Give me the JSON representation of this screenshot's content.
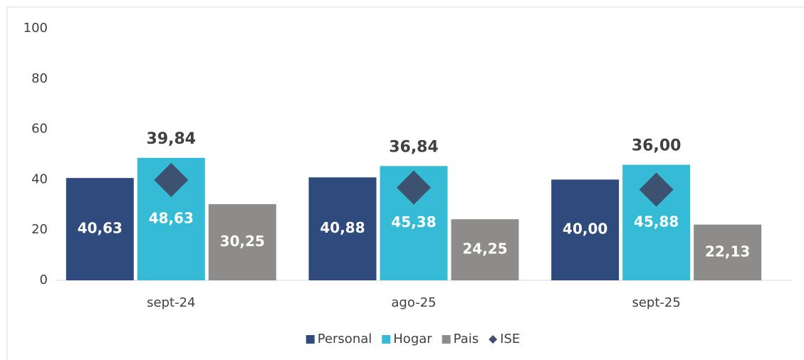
{
  "chart_data": {
    "type": "bar",
    "categories": [
      "sept-24",
      "ago-25",
      "sept-25"
    ],
    "series": [
      {
        "name": "Personal",
        "color": "#2f4a7c",
        "values": [
          40.63,
          40.88,
          40.0
        ],
        "value_labels": [
          "40,63",
          "40,88",
          "40,00"
        ]
      },
      {
        "name": "Hogar",
        "color": "#35bbd5",
        "values": [
          48.63,
          45.38,
          45.88
        ],
        "value_labels": [
          "48,63",
          "45,38",
          "45,88"
        ]
      },
      {
        "name": "Pais",
        "color": "#8e8b8b",
        "values": [
          30.25,
          24.25,
          22.13
        ],
        "value_labels": [
          "30,25",
          "24,25",
          "22,13"
        ]
      },
      {
        "name": "ISE",
        "color": "#3d5170",
        "marker": "diamond",
        "values": [
          39.84,
          36.84,
          36.0
        ],
        "value_labels": [
          "39,84",
          "36,84",
          "36,00"
        ]
      }
    ],
    "ylim": [
      0,
      100
    ],
    "yticks": [
      0,
      20,
      40,
      60,
      80,
      100
    ],
    "grid": false,
    "legend": "bottom"
  }
}
